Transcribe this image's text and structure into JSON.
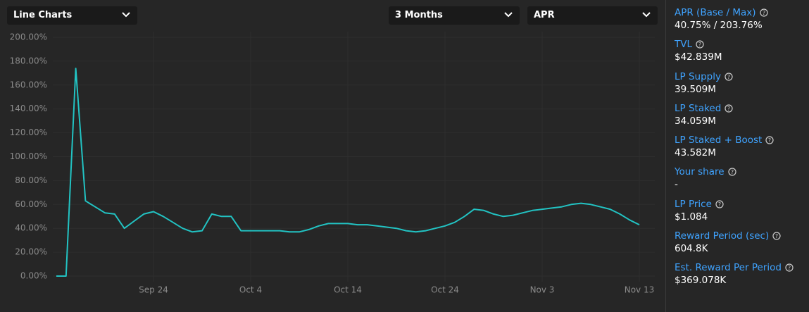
{
  "controls": {
    "view": "Line Charts",
    "range": "3 Months",
    "metric": "APR"
  },
  "chart_data": {
    "type": "line",
    "x": [
      "Sep 14",
      "Sep 15",
      "Sep 16",
      "Sep 17",
      "Sep 18",
      "Sep 19",
      "Sep 20",
      "Sep 21",
      "Sep 22",
      "Sep 23",
      "Sep 24",
      "Sep 25",
      "Sep 26",
      "Sep 27",
      "Sep 28",
      "Sep 29",
      "Sep 30",
      "Oct 1",
      "Oct 2",
      "Oct 3",
      "Oct 4",
      "Oct 5",
      "Oct 6",
      "Oct 7",
      "Oct 8",
      "Oct 9",
      "Oct 10",
      "Oct 11",
      "Oct 12",
      "Oct 13",
      "Oct 14",
      "Oct 15",
      "Oct 16",
      "Oct 17",
      "Oct 18",
      "Oct 19",
      "Oct 20",
      "Oct 21",
      "Oct 22",
      "Oct 23",
      "Oct 24",
      "Oct 25",
      "Oct 26",
      "Oct 27",
      "Oct 28",
      "Oct 29",
      "Oct 30",
      "Oct 31",
      "Nov 1",
      "Nov 2",
      "Nov 3",
      "Nov 4",
      "Nov 5",
      "Nov 6",
      "Nov 7",
      "Nov 8",
      "Nov 9",
      "Nov 10",
      "Nov 11",
      "Nov 12",
      "Nov 13"
    ],
    "series": [
      {
        "name": "APR",
        "color": "#22c3c3",
        "values": [
          0,
          0,
          174,
          63,
          58,
          53,
          52,
          40,
          46,
          52,
          54,
          50,
          45,
          40,
          37,
          38,
          52,
          50,
          50,
          38,
          38,
          38,
          38,
          38,
          37,
          37,
          39,
          42,
          44,
          44,
          44,
          43,
          43,
          42,
          41,
          40,
          38,
          37,
          38,
          40,
          42,
          45,
          50,
          56,
          55,
          52,
          50,
          51,
          53,
          55,
          56,
          57,
          58,
          60,
          61,
          60,
          58,
          56,
          52,
          47,
          43
        ]
      }
    ],
    "xticks": [
      "Sep 24",
      "Oct 4",
      "Oct 14",
      "Oct 24",
      "Nov 3",
      "Nov 13"
    ],
    "ylim": [
      0,
      200
    ],
    "yticks": [
      {
        "value": 0,
        "label": "0.00%"
      },
      {
        "value": 20,
        "label": "20.00%"
      },
      {
        "value": 40,
        "label": "40.00%"
      },
      {
        "value": 60,
        "label": "60.00%"
      },
      {
        "value": 80,
        "label": "80.00%"
      },
      {
        "value": 100,
        "label": "100.00%"
      },
      {
        "value": 120,
        "label": "120.00%"
      },
      {
        "value": 140,
        "label": "140.00%"
      },
      {
        "value": 160,
        "label": "160.00%"
      },
      {
        "value": 180,
        "label": "180.00%"
      },
      {
        "value": 200,
        "label": "200.00%"
      }
    ],
    "grid": true
  },
  "stats": [
    {
      "label": "APR (Base / Max)",
      "value": "40.75% / 203.76%"
    },
    {
      "label": "TVL",
      "value": "$42.839M"
    },
    {
      "label": "LP Supply",
      "value": "39.509M"
    },
    {
      "label": "LP Staked",
      "value": "34.059M"
    },
    {
      "label": "LP Staked + Boost",
      "value": "43.582M"
    },
    {
      "label": "Your share",
      "value": "-"
    },
    {
      "label": "LP Price",
      "value": "$1.084"
    },
    {
      "label": "Reward Period (sec)",
      "value": "604.8K"
    },
    {
      "label": "Est. Reward Per Period",
      "value": "$369.078K"
    }
  ]
}
